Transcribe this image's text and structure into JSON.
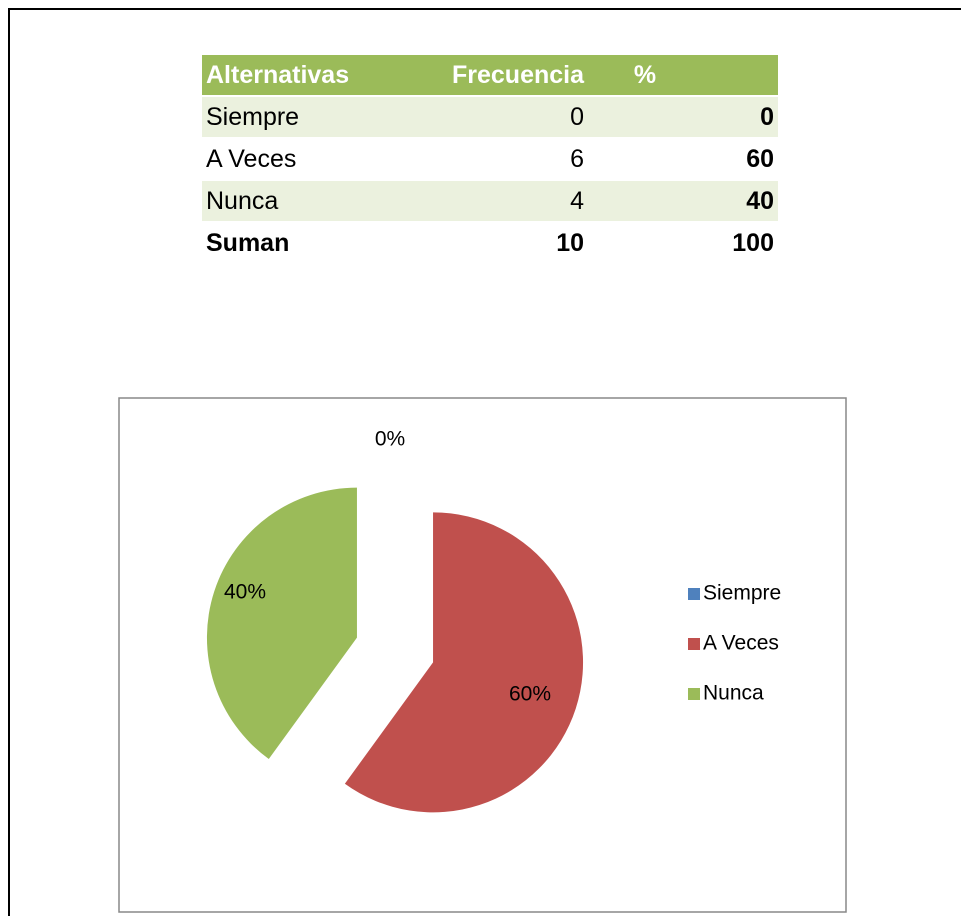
{
  "table": {
    "header": [
      "Alternativas",
      "Frecuencia",
      "%"
    ],
    "rows": [
      [
        "Siempre",
        0,
        0
      ],
      [
        "A Veces",
        6,
        60
      ],
      [
        "Nunca",
        4,
        40
      ],
      [
        "Suman",
        10,
        100
      ]
    ]
  },
  "chart_data": {
    "type": "pie",
    "categories": [
      "Siempre",
      "A Veces",
      "Nunca"
    ],
    "values": [
      0,
      60,
      40
    ],
    "value_labels": [
      "0%",
      "60%",
      "40%"
    ],
    "colors": [
      "#4f81bd",
      "#c0504d",
      "#9bbb59"
    ],
    "legend": "right"
  }
}
